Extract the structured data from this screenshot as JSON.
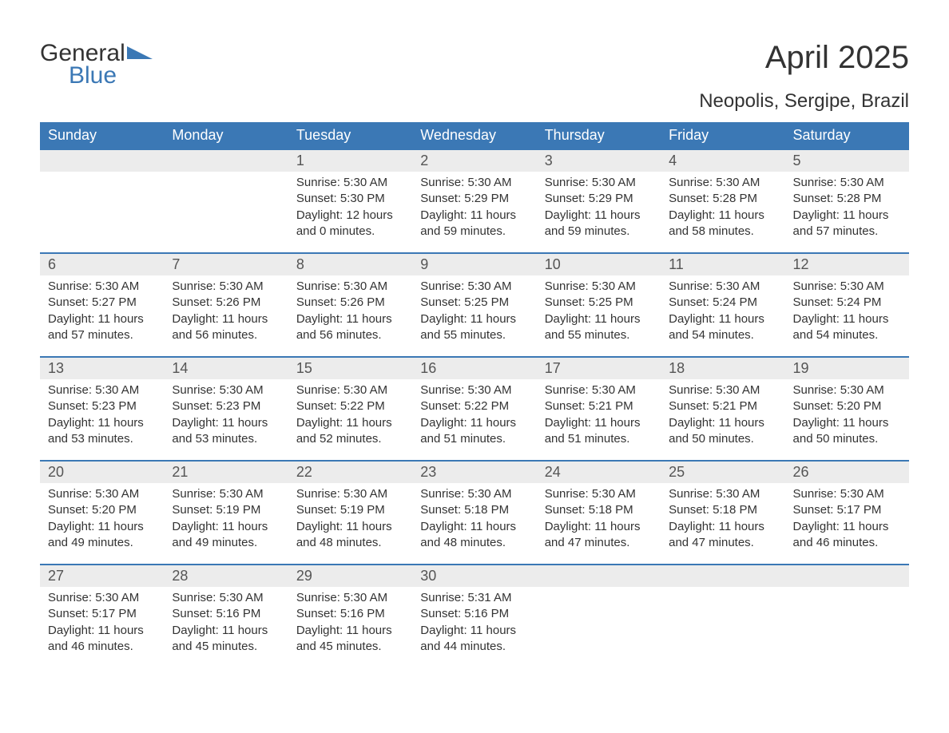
{
  "logo": {
    "text1": "General",
    "text2": "Blue"
  },
  "title": "April 2025",
  "location": "Neopolis, Sergipe, Brazil",
  "colors": {
    "header_bg": "#3b78b5",
    "header_text": "#ffffff",
    "daynum_bg": "#ececec",
    "border_top": "#3b78b5",
    "body_text": "#333333",
    "logo_blue": "#3b78b5"
  },
  "weekdays": [
    "Sunday",
    "Monday",
    "Tuesday",
    "Wednesday",
    "Thursday",
    "Friday",
    "Saturday"
  ],
  "weeks": [
    [
      null,
      null,
      {
        "n": "1",
        "sunrise": "Sunrise: 5:30 AM",
        "sunset": "Sunset: 5:30 PM",
        "day1": "Daylight: 12 hours",
        "day2": "and 0 minutes."
      },
      {
        "n": "2",
        "sunrise": "Sunrise: 5:30 AM",
        "sunset": "Sunset: 5:29 PM",
        "day1": "Daylight: 11 hours",
        "day2": "and 59 minutes."
      },
      {
        "n": "3",
        "sunrise": "Sunrise: 5:30 AM",
        "sunset": "Sunset: 5:29 PM",
        "day1": "Daylight: 11 hours",
        "day2": "and 59 minutes."
      },
      {
        "n": "4",
        "sunrise": "Sunrise: 5:30 AM",
        "sunset": "Sunset: 5:28 PM",
        "day1": "Daylight: 11 hours",
        "day2": "and 58 minutes."
      },
      {
        "n": "5",
        "sunrise": "Sunrise: 5:30 AM",
        "sunset": "Sunset: 5:28 PM",
        "day1": "Daylight: 11 hours",
        "day2": "and 57 minutes."
      }
    ],
    [
      {
        "n": "6",
        "sunrise": "Sunrise: 5:30 AM",
        "sunset": "Sunset: 5:27 PM",
        "day1": "Daylight: 11 hours",
        "day2": "and 57 minutes."
      },
      {
        "n": "7",
        "sunrise": "Sunrise: 5:30 AM",
        "sunset": "Sunset: 5:26 PM",
        "day1": "Daylight: 11 hours",
        "day2": "and 56 minutes."
      },
      {
        "n": "8",
        "sunrise": "Sunrise: 5:30 AM",
        "sunset": "Sunset: 5:26 PM",
        "day1": "Daylight: 11 hours",
        "day2": "and 56 minutes."
      },
      {
        "n": "9",
        "sunrise": "Sunrise: 5:30 AM",
        "sunset": "Sunset: 5:25 PM",
        "day1": "Daylight: 11 hours",
        "day2": "and 55 minutes."
      },
      {
        "n": "10",
        "sunrise": "Sunrise: 5:30 AM",
        "sunset": "Sunset: 5:25 PM",
        "day1": "Daylight: 11 hours",
        "day2": "and 55 minutes."
      },
      {
        "n": "11",
        "sunrise": "Sunrise: 5:30 AM",
        "sunset": "Sunset: 5:24 PM",
        "day1": "Daylight: 11 hours",
        "day2": "and 54 minutes."
      },
      {
        "n": "12",
        "sunrise": "Sunrise: 5:30 AM",
        "sunset": "Sunset: 5:24 PM",
        "day1": "Daylight: 11 hours",
        "day2": "and 54 minutes."
      }
    ],
    [
      {
        "n": "13",
        "sunrise": "Sunrise: 5:30 AM",
        "sunset": "Sunset: 5:23 PM",
        "day1": "Daylight: 11 hours",
        "day2": "and 53 minutes."
      },
      {
        "n": "14",
        "sunrise": "Sunrise: 5:30 AM",
        "sunset": "Sunset: 5:23 PM",
        "day1": "Daylight: 11 hours",
        "day2": "and 53 minutes."
      },
      {
        "n": "15",
        "sunrise": "Sunrise: 5:30 AM",
        "sunset": "Sunset: 5:22 PM",
        "day1": "Daylight: 11 hours",
        "day2": "and 52 minutes."
      },
      {
        "n": "16",
        "sunrise": "Sunrise: 5:30 AM",
        "sunset": "Sunset: 5:22 PM",
        "day1": "Daylight: 11 hours",
        "day2": "and 51 minutes."
      },
      {
        "n": "17",
        "sunrise": "Sunrise: 5:30 AM",
        "sunset": "Sunset: 5:21 PM",
        "day1": "Daylight: 11 hours",
        "day2": "and 51 minutes."
      },
      {
        "n": "18",
        "sunrise": "Sunrise: 5:30 AM",
        "sunset": "Sunset: 5:21 PM",
        "day1": "Daylight: 11 hours",
        "day2": "and 50 minutes."
      },
      {
        "n": "19",
        "sunrise": "Sunrise: 5:30 AM",
        "sunset": "Sunset: 5:20 PM",
        "day1": "Daylight: 11 hours",
        "day2": "and 50 minutes."
      }
    ],
    [
      {
        "n": "20",
        "sunrise": "Sunrise: 5:30 AM",
        "sunset": "Sunset: 5:20 PM",
        "day1": "Daylight: 11 hours",
        "day2": "and 49 minutes."
      },
      {
        "n": "21",
        "sunrise": "Sunrise: 5:30 AM",
        "sunset": "Sunset: 5:19 PM",
        "day1": "Daylight: 11 hours",
        "day2": "and 49 minutes."
      },
      {
        "n": "22",
        "sunrise": "Sunrise: 5:30 AM",
        "sunset": "Sunset: 5:19 PM",
        "day1": "Daylight: 11 hours",
        "day2": "and 48 minutes."
      },
      {
        "n": "23",
        "sunrise": "Sunrise: 5:30 AM",
        "sunset": "Sunset: 5:18 PM",
        "day1": "Daylight: 11 hours",
        "day2": "and 48 minutes."
      },
      {
        "n": "24",
        "sunrise": "Sunrise: 5:30 AM",
        "sunset": "Sunset: 5:18 PM",
        "day1": "Daylight: 11 hours",
        "day2": "and 47 minutes."
      },
      {
        "n": "25",
        "sunrise": "Sunrise: 5:30 AM",
        "sunset": "Sunset: 5:18 PM",
        "day1": "Daylight: 11 hours",
        "day2": "and 47 minutes."
      },
      {
        "n": "26",
        "sunrise": "Sunrise: 5:30 AM",
        "sunset": "Sunset: 5:17 PM",
        "day1": "Daylight: 11 hours",
        "day2": "and 46 minutes."
      }
    ],
    [
      {
        "n": "27",
        "sunrise": "Sunrise: 5:30 AM",
        "sunset": "Sunset: 5:17 PM",
        "day1": "Daylight: 11 hours",
        "day2": "and 46 minutes."
      },
      {
        "n": "28",
        "sunrise": "Sunrise: 5:30 AM",
        "sunset": "Sunset: 5:16 PM",
        "day1": "Daylight: 11 hours",
        "day2": "and 45 minutes."
      },
      {
        "n": "29",
        "sunrise": "Sunrise: 5:30 AM",
        "sunset": "Sunset: 5:16 PM",
        "day1": "Daylight: 11 hours",
        "day2": "and 45 minutes."
      },
      {
        "n": "30",
        "sunrise": "Sunrise: 5:31 AM",
        "sunset": "Sunset: 5:16 PM",
        "day1": "Daylight: 11 hours",
        "day2": "and 44 minutes."
      },
      null,
      null,
      null
    ]
  ]
}
